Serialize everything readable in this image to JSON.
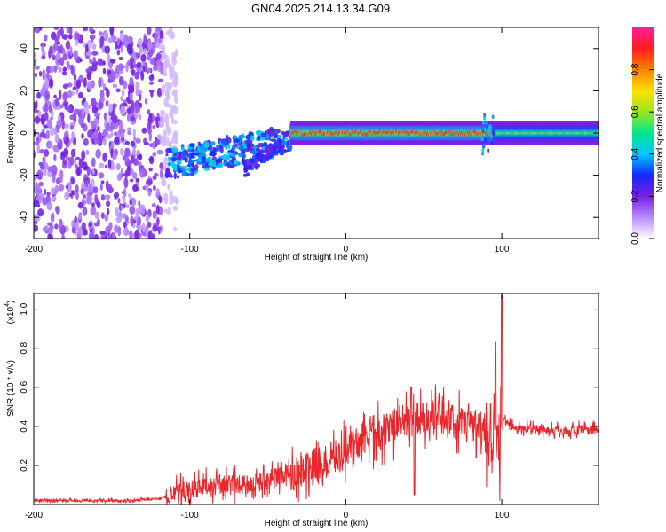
{
  "title": "GN04.2025.214.13.34.G09",
  "chart_data": [
    {
      "type": "heatmap",
      "xlabel": "Height of straight line (km)",
      "ylabel": "Frequency (Hz)",
      "xlim": [
        -200,
        162
      ],
      "ylim": [
        -50,
        50
      ],
      "x_ticks": [
        -200,
        -100,
        0,
        100
      ],
      "y_ticks": [
        -40,
        -20,
        0,
        20,
        40
      ],
      "colorbar": {
        "label": "Normalized spectral amplitude",
        "range": [
          0,
          1
        ],
        "ticks": [
          "0.0",
          "0.2",
          "0.4",
          "0.6",
          "0.8"
        ],
        "colors": [
          "#ffffff",
          "#b68cff",
          "#7a1fe0",
          "#1428ff",
          "#00c8ff",
          "#00e68c",
          "#9be61e",
          "#ffe000",
          "#ff8000",
          "#ff1e1e",
          "#ff1e9b"
        ]
      },
      "regions": [
        {
          "x_range": [
            -200,
            -115
          ],
          "freq_range": [
            -50,
            50
          ],
          "amplitude": 0.15
        },
        {
          "x_range": [
            -115,
            -35
          ],
          "freq_center": [
            -15,
            5
          ],
          "amplitude": 0.3
        },
        {
          "x_range": [
            -65,
            -40
          ],
          "freq_center": [
            -18,
            -3
          ],
          "amplitude": 0.25
        },
        {
          "x_range": [
            -35,
            95
          ],
          "freq_center": 0,
          "amplitude": 0.95
        },
        {
          "x_range": [
            95,
            162
          ],
          "freq_center": 0,
          "amplitude": 0.45
        }
      ]
    },
    {
      "type": "line",
      "xlabel": "Height of straight line (km)",
      "ylabel": "SNR (10 * v/v)",
      "y_multiplier": "(x10",
      "y_multiplier_exp": "4",
      "y_multiplier_close": ")",
      "xlim": [
        -200,
        162
      ],
      "ylim": [
        0,
        1.08
      ],
      "x_ticks": [
        -200,
        -100,
        0,
        100
      ],
      "y_ticks": [
        "0.2",
        "0.4",
        "0.6",
        "0.8",
        "1.0"
      ],
      "series": [
        {
          "color": "#e8262b",
          "x": [
            -200,
            -180,
            -160,
            -140,
            -120,
            -110,
            -100,
            -90,
            -80,
            -70,
            -60,
            -50,
            -40,
            -30,
            -20,
            -10,
            0,
            10,
            20,
            30,
            40,
            50,
            60,
            70,
            80,
            90,
            95,
            98,
            100,
            105,
            110,
            120,
            130,
            140,
            150,
            162
          ],
          "y": [
            0.02,
            0.02,
            0.02,
            0.02,
            0.03,
            0.05,
            0.08,
            0.09,
            0.1,
            0.1,
            0.1,
            0.13,
            0.15,
            0.17,
            0.2,
            0.22,
            0.28,
            0.33,
            0.36,
            0.4,
            0.43,
            0.44,
            0.45,
            0.42,
            0.41,
            0.4,
            0.3,
            0.9,
            0.45,
            0.4,
            0.39,
            0.39,
            0.38,
            0.38,
            0.38,
            0.38
          ],
          "peaks": [
            {
              "x": 42,
              "y": 0.6
            },
            {
              "x": 44,
              "y": 0.05
            },
            {
              "x": 96,
              "y": 0.83
            },
            {
              "x": 100,
              "y": 1.07
            }
          ]
        }
      ]
    }
  ]
}
